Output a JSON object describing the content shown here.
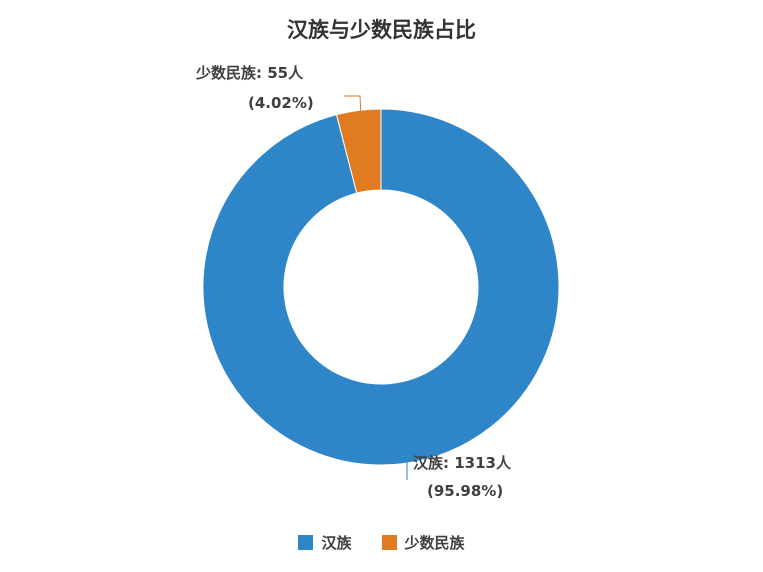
{
  "chart_data": {
    "type": "pie",
    "title": "汉族与少数民族占比",
    "categories": [
      "汉族",
      "少数民族"
    ],
    "values": [
      1313,
      55
    ],
    "unit": "人",
    "percentages": [
      "95.98%",
      "4.02%"
    ],
    "colors": [
      "#2E86C9",
      "#E07B22"
    ],
    "legend_position": "bottom",
    "data_labels": [
      {
        "line1": "汉族: 1313人",
        "line2": "(95.98%)"
      },
      {
        "line1": "少数民族: 55人",
        "line2": "(4.02%)"
      }
    ]
  }
}
